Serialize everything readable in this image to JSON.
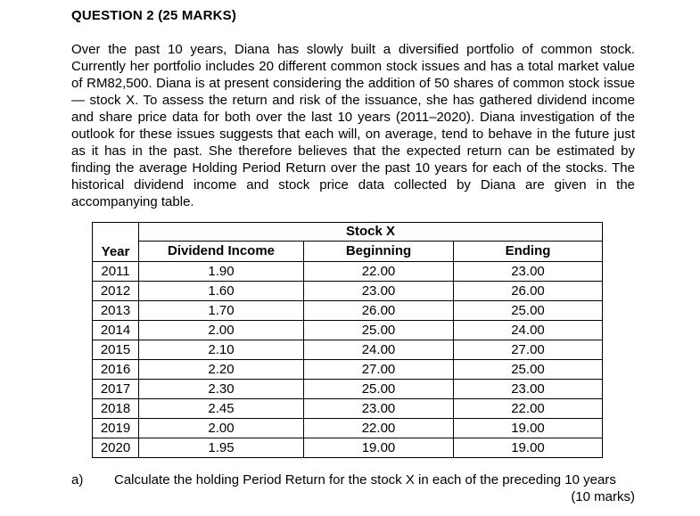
{
  "heading": "QUESTION 2 (25 MARKS)",
  "intro": "Over the past 10 years, Diana has slowly built a diversified portfolio of common stock. Currently her portfolio includes 20 different common stock issues and has a total market value of RM82,500. Diana is at present considering the addition of 50 shares of common stock issue— stock X. To assess the return and risk of the issuance, she has gathered dividend income and share price data for both over the last 10 years (2011–2020). Diana investigation of the outlook for these issues suggests that each will, on average, tend to behave in the future just as it has in the past. She therefore believes that the expected return can be estimated by finding the average Holding Period Return over the past 10 years for each of the stocks. The historical dividend income and stock price data collected by Diana are given in the accompanying table.",
  "table": {
    "group_header": "Stock X",
    "columns": [
      "Year",
      "Dividend Income",
      "Beginning",
      "Ending"
    ],
    "rows": [
      [
        "2011",
        "1.90",
        "22.00",
        "23.00"
      ],
      [
        "2012",
        "1.60",
        "23.00",
        "26.00"
      ],
      [
        "2013",
        "1.70",
        "26.00",
        "25.00"
      ],
      [
        "2014",
        "2.00",
        "25.00",
        "24.00"
      ],
      [
        "2015",
        "2.10",
        "24.00",
        "27.00"
      ],
      [
        "2016",
        "2.20",
        "27.00",
        "25.00"
      ],
      [
        "2017",
        "2.30",
        "25.00",
        "23.00"
      ],
      [
        "2018",
        "2.45",
        "23.00",
        "22.00"
      ],
      [
        "2019",
        "2.00",
        "22.00",
        "19.00"
      ],
      [
        "2020",
        "1.95",
        "19.00",
        "19.00"
      ]
    ]
  },
  "question_a": {
    "label": "a)",
    "text": "Calculate the holding Period Return for the stock X in each of the preceding 10 years",
    "marks": "(10 marks)"
  }
}
